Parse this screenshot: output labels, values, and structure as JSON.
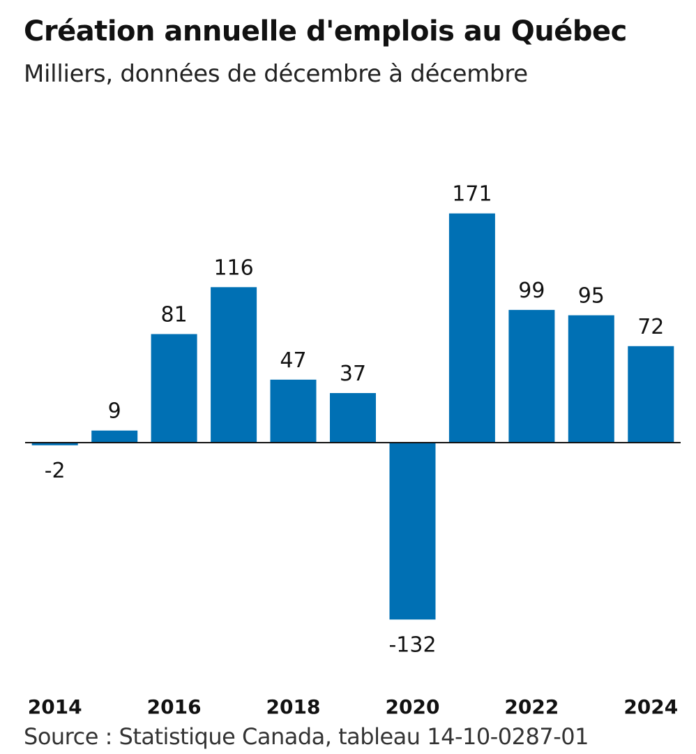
{
  "header": {
    "title": "Création annuelle d'emplois au Québec",
    "subtitle": "Milliers, données de décembre à décembre"
  },
  "footer": {
    "source": "Source : Statistique Canada, tableau 14-10-0287-01"
  },
  "colors": {
    "bar": "#0070b4",
    "baseline": "#111111",
    "text": "#111111"
  },
  "chart_data": {
    "type": "bar",
    "title": "Création annuelle d'emplois au Québec",
    "subtitle": "Milliers, données de décembre à décembre",
    "xlabel": "",
    "ylabel": "",
    "categories": [
      "2014",
      "2015",
      "2016",
      "2017",
      "2018",
      "2019",
      "2020",
      "2021",
      "2022",
      "2023",
      "2024"
    ],
    "x_tick_labels": [
      "2014",
      "",
      "2016",
      "",
      "2018",
      "",
      "2020",
      "",
      "2022",
      "",
      "2024"
    ],
    "values": [
      -2,
      9,
      81,
      116,
      47,
      37,
      -132,
      171,
      99,
      95,
      72
    ],
    "value_labels": [
      "-2",
      "9",
      "81",
      "116",
      "47",
      "37",
      "-132",
      "171",
      "99",
      "95",
      "72"
    ],
    "ylim": [
      -132,
      171
    ],
    "grid": false,
    "legend": "none"
  }
}
